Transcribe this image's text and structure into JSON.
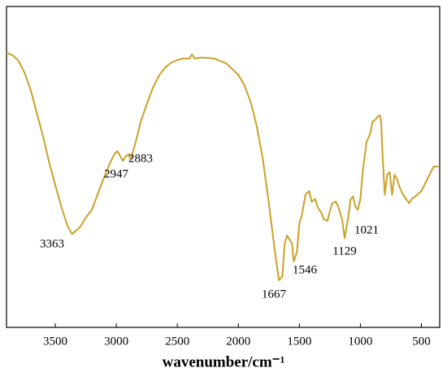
{
  "chart_data": {
    "type": "line",
    "x_label": "wavenumber/cm⁻¹",
    "x": [
      3900,
      3850,
      3800,
      3750,
      3700,
      3650,
      3600,
      3550,
      3500,
      3450,
      3400,
      3363,
      3300,
      3250,
      3200,
      3150,
      3100,
      3050,
      3010,
      2990,
      2947,
      2920,
      2900,
      2883,
      2850,
      2800,
      2750,
      2700,
      2650,
      2600,
      2550,
      2500,
      2450,
      2400,
      2380,
      2360,
      2300,
      2200,
      2100,
      2000,
      1950,
      1900,
      1850,
      1800,
      1750,
      1700,
      1667,
      1640,
      1620,
      1600,
      1580,
      1560,
      1546,
      1520,
      1500,
      1480,
      1450,
      1420,
      1400,
      1370,
      1350,
      1320,
      1300,
      1270,
      1250,
      1230,
      1200,
      1180,
      1150,
      1129,
      1100,
      1080,
      1060,
      1040,
      1021,
      1000,
      980,
      950,
      920,
      900,
      880,
      860,
      840,
      830,
      815,
      800,
      780,
      760,
      740,
      720,
      700,
      680,
      650,
      600,
      580,
      550,
      500,
      450,
      400,
      360
    ],
    "series": [
      {
        "color": "#c9a227",
        "values": [
          85.6,
          84.8,
          83.0,
          79.2,
          73.7,
          66.6,
          59.5,
          51.4,
          44.3,
          37.5,
          31.6,
          29.1,
          31.1,
          34.2,
          36.7,
          41.8,
          46.8,
          51.4,
          54.4,
          54.9,
          51.9,
          53.4,
          53.9,
          52.4,
          56.5,
          64.1,
          69.6,
          74.7,
          78.5,
          81.0,
          82.5,
          83.3,
          83.8,
          83.8,
          85.1,
          83.8,
          84.1,
          83.8,
          82.3,
          78.7,
          75.4,
          70.4,
          62.8,
          52.7,
          38.7,
          23.5,
          14.7,
          15.9,
          26.1,
          28.6,
          27.3,
          26.1,
          20.5,
          23.5,
          32.4,
          34.9,
          41.3,
          42.5,
          39.2,
          40.0,
          37.5,
          35.7,
          33.7,
          33.2,
          36.2,
          38.7,
          39.2,
          37.5,
          33.7,
          27.8,
          34.2,
          40.0,
          40.8,
          37.5,
          36.7,
          40.0,
          48.9,
          57.7,
          60.3,
          64.1,
          64.6,
          65.6,
          66.1,
          64.1,
          51.4,
          41.3,
          47.6,
          48.4,
          41.3,
          47.6,
          46.3,
          43.8,
          41.3,
          38.7,
          40.0,
          40.8,
          42.5,
          46.3,
          50.1,
          50.1
        ]
      }
    ],
    "xlim": [
      3900,
      350
    ],
    "xticks": [
      3500,
      3000,
      2500,
      2000,
      1500,
      1000,
      500
    ],
    "ylim": [
      0,
      100
    ],
    "annotations": [
      "3363",
      "2947",
      "2883",
      "1667",
      "1546",
      "1129",
      "1021"
    ]
  }
}
